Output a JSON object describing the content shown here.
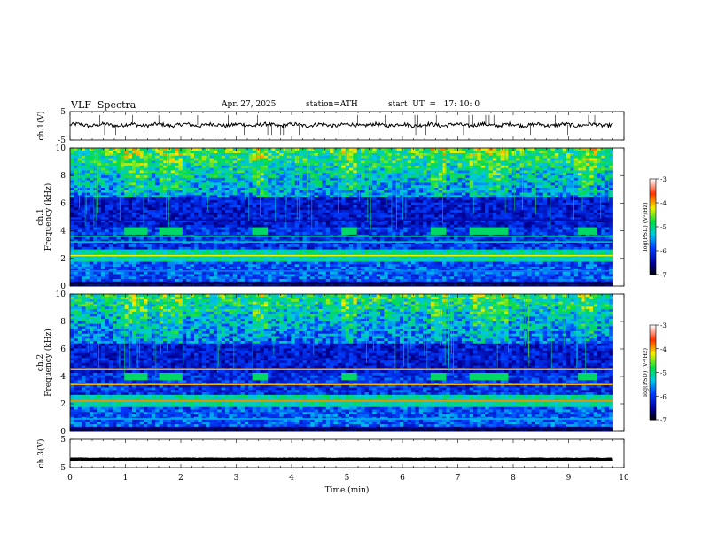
{
  "header": {
    "title": "VLF  Spectra",
    "date": "Apr. 27, 2025",
    "station": "station=ATH",
    "start_ut": "start  UT  =   17: 10: 0"
  },
  "colorbar": {
    "label": "log(PSD) (V²/Hz)",
    "ticks": [
      "-3",
      "-4",
      "-5",
      "-6",
      "-7"
    ],
    "colors": [
      "#000000",
      "#0000cc",
      "#0080ff",
      "#00e5e5",
      "#00dd44",
      "#ffff00",
      "#ff3300",
      "#ffffff"
    ]
  },
  "chart_data": [
    {
      "type": "line",
      "name": "ch1-waveform",
      "ylabel": "ch.1(V)",
      "ylim": [
        -5,
        5
      ],
      "yticks": [
        "5",
        "-5"
      ],
      "xlim": [
        0,
        10
      ],
      "baseline": 0.3,
      "grid": false
    },
    {
      "type": "heatmap",
      "name": "ch1-spectrogram",
      "ylabel": "ch.1\nFrequency  (kHz)",
      "ylim": [
        0,
        10
      ],
      "yticks": [
        "0",
        "2",
        "4",
        "6",
        "8",
        "10"
      ],
      "xlim": [
        0,
        10
      ],
      "zlim": [
        -7,
        -3
      ],
      "active_bursts_min": [
        [
          1.0,
          1.4
        ],
        [
          1.6,
          2.0
        ],
        [
          3.3,
          3.6
        ],
        [
          4.9,
          5.2
        ],
        [
          6.5,
          6.8
        ],
        [
          7.2,
          7.9
        ],
        [
          9.2,
          9.5
        ]
      ]
    },
    {
      "type": "heatmap",
      "name": "ch2-spectrogram",
      "ylabel": "ch.2\nFrequency  (kHz)",
      "ylim": [
        0,
        10
      ],
      "yticks": [
        "0",
        "2",
        "4",
        "6",
        "8",
        "10"
      ],
      "xlim": [
        0,
        10
      ],
      "zlim": [
        -7,
        -3
      ],
      "active_bursts_min": [
        [
          1.0,
          1.4
        ],
        [
          1.6,
          2.0
        ],
        [
          3.3,
          3.6
        ],
        [
          4.9,
          5.2
        ],
        [
          6.5,
          6.8
        ],
        [
          7.2,
          7.9
        ],
        [
          9.2,
          9.5
        ]
      ]
    },
    {
      "type": "line",
      "name": "ch3-signal",
      "ylabel": "ch.3(V)",
      "ylim": [
        -5,
        5
      ],
      "yticks": [
        "5",
        "-5"
      ],
      "xlim": [
        0,
        10
      ],
      "baseline": -2.0,
      "grid": false
    }
  ],
  "xaxis": {
    "label": "Time  (min)",
    "ticks": [
      "0",
      "1",
      "2",
      "3",
      "4",
      "5",
      "6",
      "7",
      "8",
      "9",
      "10"
    ]
  }
}
